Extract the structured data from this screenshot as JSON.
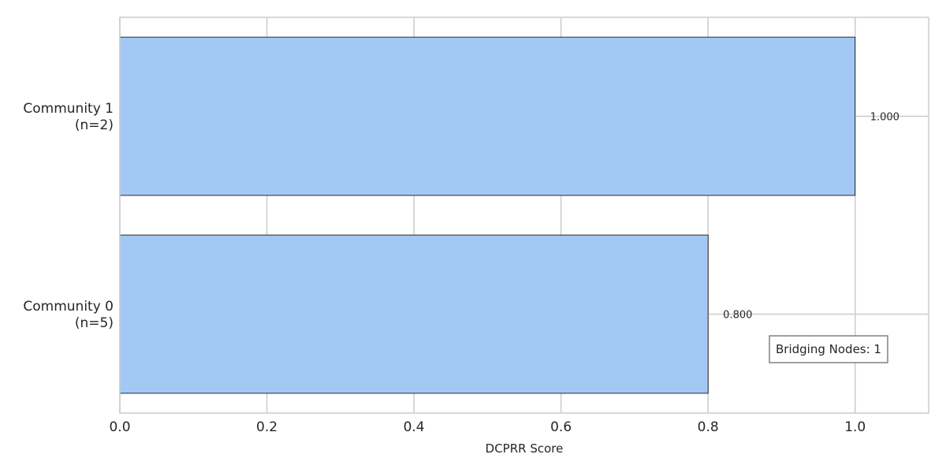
{
  "chart_data": {
    "type": "bar",
    "orientation": "horizontal",
    "categories": [
      "Community 0\n(n=5)",
      "Community 1\n(n=2)"
    ],
    "values": [
      0.8,
      1.0
    ],
    "value_labels": [
      "0.800",
      "1.000"
    ],
    "xlabel": "DCPRR Score",
    "ylabel": "",
    "title": "",
    "xlim": [
      0,
      1.1
    ],
    "xticks": [
      0.0,
      0.2,
      0.4,
      0.6,
      0.8,
      1.0
    ],
    "xtick_labels": [
      "0.0",
      "0.2",
      "0.4",
      "0.6",
      "0.8",
      "1.0"
    ],
    "grid": true,
    "annotation": "Bridging Nodes: 1",
    "colors": {
      "bar_fill": "#a3c8f3",
      "bar_edge": "#000000",
      "grid": "#cccccc",
      "text": "#262626"
    }
  }
}
